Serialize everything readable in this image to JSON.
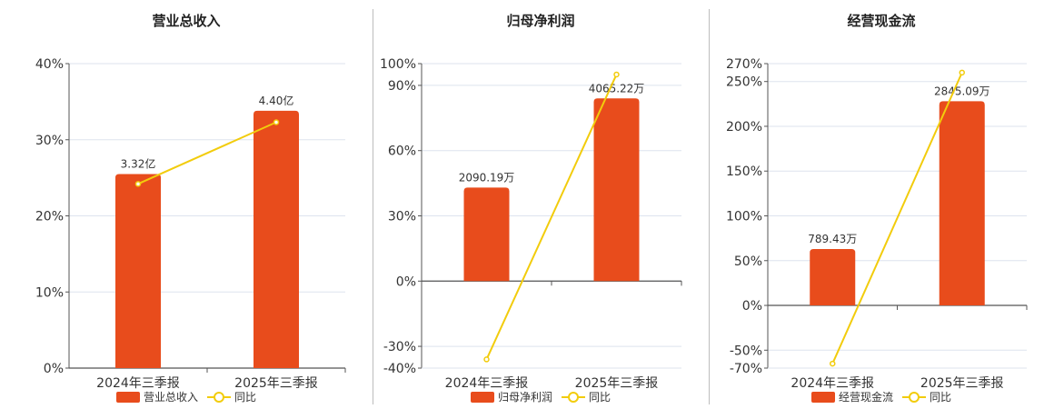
{
  "colors": {
    "bar": "#e84c1c",
    "line": "#f2cc0c",
    "grid": "#dde3ee",
    "axis": "#555555"
  },
  "chart_data": [
    {
      "type": "bar",
      "title": "营业总收入",
      "categories": [
        "2024年三季报",
        "2025年三季报"
      ],
      "series": [
        {
          "name": "营业总收入",
          "type": "bar",
          "values": [
            25.5,
            33.8
          ],
          "labels": [
            "3.32亿",
            "4.40亿"
          ]
        },
        {
          "name": "同比",
          "type": "line",
          "values": [
            24.2,
            32.3
          ]
        }
      ],
      "yticks": [
        "40%",
        "30%",
        "20%",
        "10%",
        "0%"
      ],
      "ytick_values": [
        40,
        30,
        20,
        10,
        0
      ],
      "ylim": [
        0,
        40
      ],
      "grid": true,
      "legend": "bottom"
    },
    {
      "type": "bar",
      "title": "归母净利润",
      "categories": [
        "2024年三季报",
        "2025年三季报"
      ],
      "series": [
        {
          "name": "归母净利润",
          "type": "bar",
          "values": [
            43,
            84
          ],
          "labels": [
            "2090.19万",
            "4065.22万"
          ]
        },
        {
          "name": "同比",
          "type": "line",
          "values": [
            -36,
            95
          ]
        }
      ],
      "yticks": [
        "100%",
        "90%",
        "60%",
        "30%",
        "0%",
        "-30%",
        "-40%"
      ],
      "ytick_values": [
        100,
        90,
        60,
        30,
        0,
        -30,
        -40
      ],
      "ylim": [
        -40,
        100
      ],
      "grid": true,
      "legend": "bottom"
    },
    {
      "type": "bar",
      "title": "经营现金流",
      "categories": [
        "2024年三季报",
        "2025年三季报"
      ],
      "series": [
        {
          "name": "经营现金流",
          "type": "bar",
          "values": [
            63,
            228
          ],
          "labels": [
            "789.43万",
            "2845.09万"
          ]
        },
        {
          "name": "同比",
          "type": "line",
          "values": [
            -65,
            260
          ]
        }
      ],
      "yticks": [
        "270%",
        "250%",
        "200%",
        "150%",
        "100%",
        "50%",
        "0%",
        "-50%",
        "-70%"
      ],
      "ytick_values": [
        270,
        250,
        200,
        150,
        100,
        50,
        0,
        -50,
        -70
      ],
      "ylim": [
        -70,
        270
      ],
      "grid": true,
      "legend": "bottom"
    }
  ],
  "legend_labels": {
    "p0": {
      "bar": "营业总收入",
      "line": "同比"
    },
    "p1": {
      "bar": "归母净利润",
      "line": "同比"
    },
    "p2": {
      "bar": "经营现金流",
      "line": "同比"
    }
  }
}
